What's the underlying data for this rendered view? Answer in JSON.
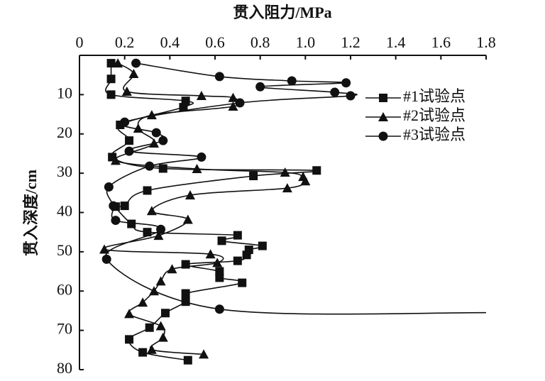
{
  "chart_data": {
    "type": "line",
    "x_label": "贯入阻力/MPa",
    "y_label": "贯入深度/cm",
    "xlim": [
      0,
      1.8
    ],
    "xticks": [
      0,
      0.2,
      0.4,
      0.6,
      0.8,
      {
        "value": 1,
        "label": "1.0"
      },
      1.2,
      1.4,
      1.6,
      1.8
    ],
    "ylim": [
      0,
      80
    ],
    "yticks": [
      10,
      20,
      30,
      40,
      50,
      60,
      70,
      80
    ],
    "y_inverted": true,
    "x_axis_top": true,
    "legend": "upper right",
    "series": [
      {
        "name": "#1试验点",
        "color": "#111111",
        "marker": "square",
        "x": [
          0.14,
          0.14,
          0.14,
          0.47,
          0.46,
          0.18,
          0.22,
          0.145,
          0.37,
          1.05,
          0.77,
          0.3,
          0.2,
          0.16,
          0.23,
          0.3,
          0.7,
          0.63,
          0.81,
          0.75,
          0.74,
          0.7,
          0.47,
          0.62,
          0.62,
          0.72,
          0.47,
          0.47,
          0.38,
          0.31,
          0.22,
          0.28,
          0.48
        ],
        "values": [
          2,
          6,
          10,
          11.6,
          13.2,
          17.7,
          21.7,
          25.9,
          28.8,
          29.3,
          30.7,
          34.4,
          38.3,
          38.5,
          42.9,
          45,
          45.8,
          47.2,
          48.5,
          49.5,
          50.8,
          52.3,
          53.2,
          55,
          56.6,
          57.9,
          60.6,
          62.7,
          65.6,
          69.3,
          72.3,
          75.6,
          77.6
        ]
      },
      {
        "name": "#2试验点",
        "color": "#111111",
        "marker": "triangle",
        "x": [
          0.17,
          0.24,
          0.21,
          0.54,
          0.68,
          0.68,
          0.32,
          0.26,
          0.33,
          0.16,
          0.52,
          0.91,
          0.99,
          1.0,
          0.92,
          0.49,
          0.32,
          0.48,
          0.35,
          0.11,
          0.58,
          0.61,
          0.41,
          0.36,
          0.33,
          0.28,
          0.22,
          0.36,
          0.37,
          0.32,
          0.55
        ],
        "values": [
          2,
          4.7,
          9.2,
          10.3,
          10.8,
          13,
          15.2,
          18.6,
          22.4,
          26.8,
          28.9,
          29.8,
          30.9,
          32,
          33.8,
          35.6,
          39.6,
          41.8,
          45.9,
          49.4,
          50.6,
          52.8,
          54.4,
          57.5,
          60,
          62.9,
          65.8,
          68.9,
          71.8,
          74.9,
          76.1
        ]
      },
      {
        "name": "#3试验点",
        "color": "#111111",
        "marker": "circle",
        "x": [
          0.25,
          0.62,
          0.94,
          1.18,
          0.8,
          1.13,
          1.2,
          0.71,
          0.2,
          0.34,
          0.37,
          0.22,
          0.54,
          0.31,
          0.13,
          0.15,
          0.16,
          0.36,
          0.12,
          0.62,
          1.8
        ],
        "values": [
          2,
          5.4,
          6.5,
          7,
          8,
          9.4,
          10.3,
          12.1,
          17,
          19.7,
          21.7,
          24.4,
          25.9,
          28.2,
          33.5,
          38.3,
          42,
          44.3,
          51.9,
          64.6,
          65.5
        ]
      }
    ]
  }
}
